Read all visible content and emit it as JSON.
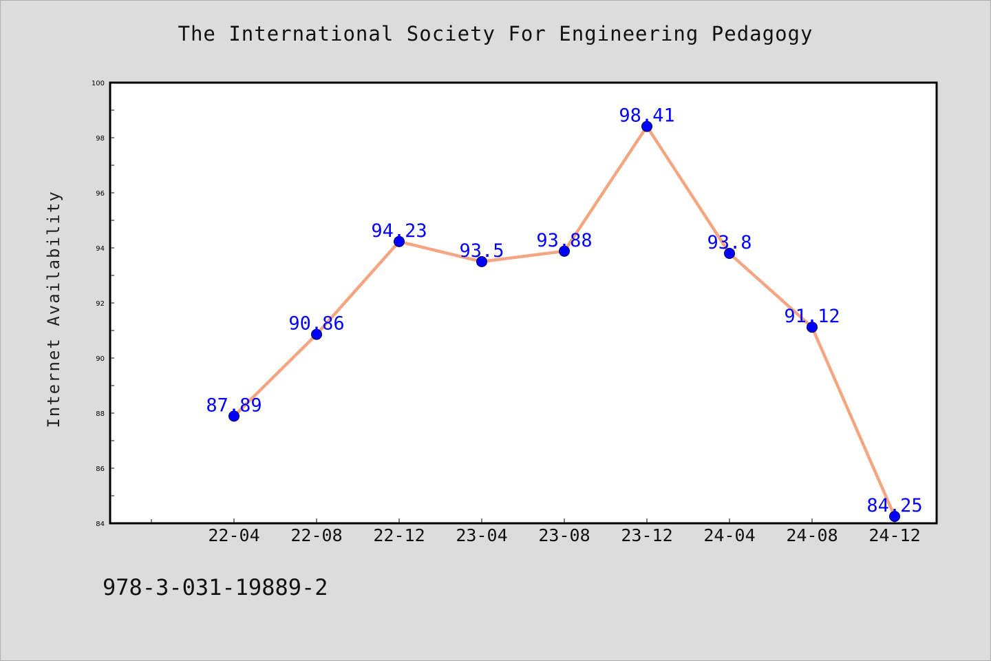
{
  "chart_data": {
    "type": "line",
    "title": "The International Society For Engineering Pedagogy",
    "ylabel": "Internet Availability",
    "xlabel": "",
    "categories": [
      "22-04",
      "22-08",
      "22-12",
      "23-04",
      "23-08",
      "23-12",
      "24-04",
      "24-08",
      "24-12"
    ],
    "series": [
      {
        "values": [
          87.89,
          90.86,
          94.23,
          93.5,
          93.88,
          98.41,
          93.8,
          91.12,
          84.25
        ]
      }
    ],
    "data_labels": [
      "87.89",
      "90.86",
      "94.23",
      "93.5",
      "93.88",
      "98.41",
      "93.8",
      "91.12",
      "84.25"
    ],
    "ylim": [
      84,
      100
    ],
    "yticks": [
      "84",
      "86",
      "88",
      "90",
      "92",
      "94",
      "96",
      "98",
      "100"
    ],
    "grid": false,
    "line_color": "#f4a582",
    "marker_color": "#0000ff",
    "label_color": "#0000ff"
  },
  "footer_text": "978-3-031-19889-2"
}
